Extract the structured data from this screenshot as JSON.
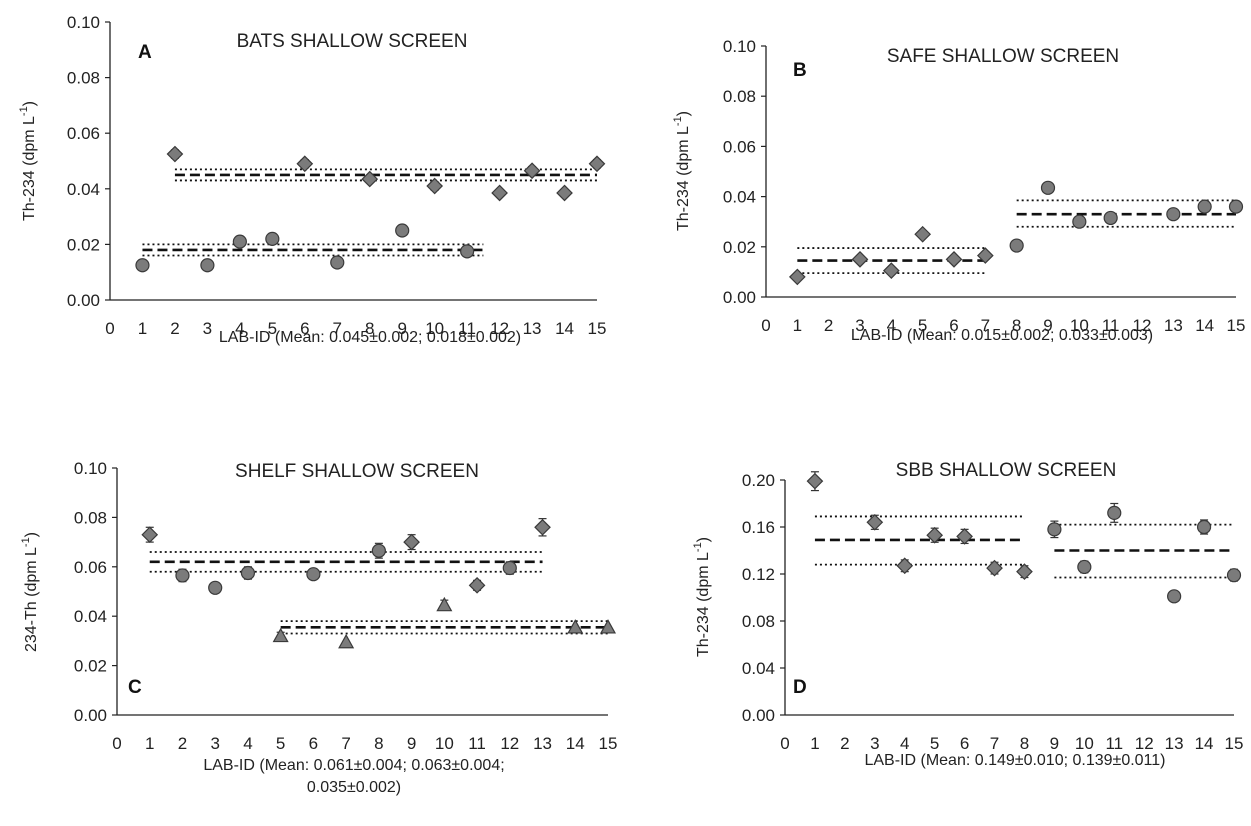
{
  "colors": {
    "marker_fill": "#7b7b7b",
    "marker_stroke": "#3a3a3a",
    "axis": "#222222"
  },
  "chart_data": [
    {
      "type": "scatter",
      "panel_label": "A",
      "title": "BATS SHALLOW SCREEN",
      "ylabel": "Th-234 (dpm L",
      "ylabel_sup": "-1",
      "ylabel_end": ")",
      "xlabel_lines": [
        "LAB-ID (Mean: 0.045±0.002; 0.018±0.002)"
      ],
      "xlim": [
        0,
        15
      ],
      "ylim": [
        0,
        0.1
      ],
      "xticks": [
        "0",
        "1",
        "2",
        "3",
        "4",
        "5",
        "6",
        "7",
        "8",
        "9",
        "10",
        "11",
        "12",
        "13",
        "14",
        "15"
      ],
      "yticks": [
        "0.00",
        "0.02",
        "0.04",
        "0.06",
        "0.08",
        "0.10"
      ],
      "points": [
        {
          "x": 1,
          "y": 0.0125,
          "m": "circle"
        },
        {
          "x": 2,
          "y": 0.0525,
          "m": "diamond",
          "err": 0.0015
        },
        {
          "x": 3,
          "y": 0.0125,
          "m": "circle"
        },
        {
          "x": 4,
          "y": 0.021,
          "m": "circle"
        },
        {
          "x": 5,
          "y": 0.022,
          "m": "circle"
        },
        {
          "x": 6,
          "y": 0.049,
          "m": "diamond",
          "err": 0.0015
        },
        {
          "x": 7,
          "y": 0.0135,
          "m": "circle"
        },
        {
          "x": 8,
          "y": 0.0435,
          "m": "diamond"
        },
        {
          "x": 9,
          "y": 0.025,
          "m": "circle"
        },
        {
          "x": 10,
          "y": 0.041,
          "m": "diamond",
          "err": 0.0015
        },
        {
          "x": 11,
          "y": 0.0175,
          "m": "circle"
        },
        {
          "x": 12,
          "y": 0.0385,
          "m": "diamond"
        },
        {
          "x": 13,
          "y": 0.0465,
          "m": "diamond",
          "err": 0.0015
        },
        {
          "x": 14,
          "y": 0.0385,
          "m": "diamond"
        },
        {
          "x": 15,
          "y": 0.049,
          "m": "diamond",
          "err": 0.0015
        }
      ],
      "lines": [
        {
          "x1": 2,
          "x2": 15,
          "y": 0.045,
          "style": "dashed"
        },
        {
          "x1": 2,
          "x2": 15,
          "y": 0.047,
          "style": "dotted"
        },
        {
          "x1": 2,
          "x2": 15,
          "y": 0.043,
          "style": "dotted"
        },
        {
          "x1": 1,
          "x2": 11.5,
          "y": 0.018,
          "style": "dashed"
        },
        {
          "x1": 1,
          "x2": 11.5,
          "y": 0.02,
          "style": "dotted"
        },
        {
          "x1": 1,
          "x2": 11.5,
          "y": 0.016,
          "style": "dotted"
        }
      ]
    },
    {
      "type": "scatter",
      "panel_label": "B",
      "title": "SAFE SHALLOW SCREEN",
      "ylabel": "Th-234 (dpm L",
      "ylabel_sup": "-1",
      "ylabel_end": ")",
      "xlabel_lines": [
        "LAB-ID (Mean: 0.015±0.002; 0.033±0.003)"
      ],
      "xlim": [
        0,
        15
      ],
      "ylim": [
        0,
        0.1
      ],
      "xticks": [
        "0",
        "1",
        "2",
        "3",
        "4",
        "5",
        "6",
        "7",
        "8",
        "9",
        "10",
        "11",
        "12",
        "13",
        "14",
        "15"
      ],
      "yticks": [
        "0.00",
        "0.02",
        "0.04",
        "0.06",
        "0.08",
        "0.10"
      ],
      "points": [
        {
          "x": 1,
          "y": 0.008,
          "m": "diamond"
        },
        {
          "x": 3,
          "y": 0.015,
          "m": "diamond"
        },
        {
          "x": 4,
          "y": 0.0105,
          "m": "diamond"
        },
        {
          "x": 5,
          "y": 0.025,
          "m": "diamond"
        },
        {
          "x": 6,
          "y": 0.015,
          "m": "diamond"
        },
        {
          "x": 7,
          "y": 0.0165,
          "m": "diamond",
          "err": 0.0015
        },
        {
          "x": 8,
          "y": 0.0205,
          "m": "circle"
        },
        {
          "x": 9,
          "y": 0.0435,
          "m": "circle"
        },
        {
          "x": 10,
          "y": 0.03,
          "m": "circle"
        },
        {
          "x": 11,
          "y": 0.0315,
          "m": "circle"
        },
        {
          "x": 13,
          "y": 0.033,
          "m": "circle"
        },
        {
          "x": 14,
          "y": 0.036,
          "m": "circle"
        },
        {
          "x": 15,
          "y": 0.036,
          "m": "circle"
        }
      ],
      "lines": [
        {
          "x1": 1,
          "x2": 7,
          "y": 0.0145,
          "style": "dashed"
        },
        {
          "x1": 1,
          "x2": 7,
          "y": 0.0195,
          "style": "dotted"
        },
        {
          "x1": 1,
          "x2": 7,
          "y": 0.0095,
          "style": "dotted"
        },
        {
          "x1": 8,
          "x2": 15,
          "y": 0.033,
          "style": "dashed"
        },
        {
          "x1": 8,
          "x2": 15,
          "y": 0.0385,
          "style": "dotted"
        },
        {
          "x1": 8,
          "x2": 15,
          "y": 0.028,
          "style": "dotted"
        }
      ]
    },
    {
      "type": "scatter",
      "panel_label": "C",
      "title": "SHELF SHALLOW SCREEN",
      "ylabel": "234-Th (dpm L",
      "ylabel_sup": "-1",
      "ylabel_end": ")",
      "xlabel_lines": [
        "LAB-ID (Mean: 0.061±0.004; 0.063±0.004;",
        "0.035±0.002)"
      ],
      "xlim": [
        0,
        15
      ],
      "ylim": [
        0,
        0.1
      ],
      "xticks": [
        "0",
        "1",
        "2",
        "3",
        "4",
        "5",
        "6",
        "7",
        "8",
        "9",
        "10",
        "11",
        "12",
        "13",
        "14",
        "15"
      ],
      "yticks": [
        "0.00",
        "0.02",
        "0.04",
        "0.06",
        "0.08",
        "0.10"
      ],
      "points": [
        {
          "x": 1,
          "y": 0.073,
          "m": "diamond",
          "err": 0.003
        },
        {
          "x": 2,
          "y": 0.0565,
          "m": "circle",
          "err": 0.0025
        },
        {
          "x": 3,
          "y": 0.0515,
          "m": "circle",
          "err": 0.0015
        },
        {
          "x": 4,
          "y": 0.0575,
          "m": "circle",
          "err": 0.0025
        },
        {
          "x": 5,
          "y": 0.032,
          "m": "triangle",
          "err": 0.0015
        },
        {
          "x": 6,
          "y": 0.057,
          "m": "circle",
          "err": 0.002
        },
        {
          "x": 7,
          "y": 0.0295,
          "m": "triangle"
        },
        {
          "x": 8,
          "y": 0.0665,
          "m": "circle",
          "err": 0.003
        },
        {
          "x": 9,
          "y": 0.07,
          "m": "diamond",
          "err": 0.003
        },
        {
          "x": 10,
          "y": 0.0445,
          "m": "triangle",
          "err": 0.002
        },
        {
          "x": 11,
          "y": 0.0525,
          "m": "diamond",
          "err": 0.002
        },
        {
          "x": 12,
          "y": 0.0595,
          "m": "circle",
          "err": 0.0025
        },
        {
          "x": 13,
          "y": 0.076,
          "m": "diamond",
          "err": 0.0035
        },
        {
          "x": 14,
          "y": 0.0355,
          "m": "triangle"
        },
        {
          "x": 15,
          "y": 0.0355,
          "m": "triangle"
        }
      ],
      "lines": [
        {
          "x1": 1,
          "x2": 13,
          "y": 0.062,
          "style": "dashed"
        },
        {
          "x1": 1,
          "x2": 13,
          "y": 0.066,
          "style": "dotted"
        },
        {
          "x1": 1,
          "x2": 13,
          "y": 0.058,
          "style": "dotted"
        },
        {
          "x1": 5,
          "x2": 15,
          "y": 0.0355,
          "style": "dashed"
        },
        {
          "x1": 5,
          "x2": 15,
          "y": 0.038,
          "style": "dotted"
        },
        {
          "x1": 5,
          "x2": 15,
          "y": 0.033,
          "style": "dotted"
        }
      ]
    },
    {
      "type": "scatter",
      "panel_label": "D",
      "title": "SBB SHALLOW SCREEN",
      "ylabel": "Th-234 (dpm L",
      "ylabel_sup": "-1",
      "ylabel_end": ")",
      "xlabel_lines": [
        "LAB-ID (Mean: 0.149±0.010; 0.139±0.011)"
      ],
      "xlim": [
        0,
        15
      ],
      "ylim": [
        0,
        0.2
      ],
      "xticks": [
        "0",
        "1",
        "2",
        "3",
        "4",
        "5",
        "6",
        "7",
        "8",
        "9",
        "10",
        "11",
        "12",
        "13",
        "14",
        "15"
      ],
      "yticks": [
        "0.00",
        "0.04",
        "0.08",
        "0.12",
        "0.16",
        "0.20"
      ],
      "points": [
        {
          "x": 1,
          "y": 0.199,
          "m": "diamond",
          "err": 0.008
        },
        {
          "x": 3,
          "y": 0.164,
          "m": "diamond",
          "err": 0.006
        },
        {
          "x": 4,
          "y": 0.127,
          "m": "diamond",
          "err": 0.005
        },
        {
          "x": 5,
          "y": 0.153,
          "m": "diamond",
          "err": 0.006
        },
        {
          "x": 6,
          "y": 0.152,
          "m": "diamond",
          "err": 0.006
        },
        {
          "x": 7,
          "y": 0.125,
          "m": "diamond",
          "err": 0.005
        },
        {
          "x": 8,
          "y": 0.122,
          "m": "diamond",
          "err": 0.005
        },
        {
          "x": 9,
          "y": 0.158,
          "m": "circle",
          "err": 0.007
        },
        {
          "x": 10,
          "y": 0.126,
          "m": "circle",
          "err": 0.005
        },
        {
          "x": 11,
          "y": 0.172,
          "m": "circle",
          "err": 0.008
        },
        {
          "x": 13,
          "y": 0.101,
          "m": "circle",
          "err": 0.004
        },
        {
          "x": 14,
          "y": 0.16,
          "m": "circle",
          "err": 0.006
        },
        {
          "x": 15,
          "y": 0.119,
          "m": "circle",
          "err": 0.005
        }
      ],
      "lines": [
        {
          "x1": 1,
          "x2": 8,
          "y": 0.149,
          "style": "dashed"
        },
        {
          "x1": 1,
          "x2": 8,
          "y": 0.169,
          "style": "dotted"
        },
        {
          "x1": 1,
          "x2": 8,
          "y": 0.128,
          "style": "dotted"
        },
        {
          "x1": 9,
          "x2": 15,
          "y": 0.14,
          "style": "dashed"
        },
        {
          "x1": 9,
          "x2": 15,
          "y": 0.162,
          "style": "dotted"
        },
        {
          "x1": 9,
          "x2": 15,
          "y": 0.117,
          "style": "dotted"
        }
      ]
    }
  ]
}
